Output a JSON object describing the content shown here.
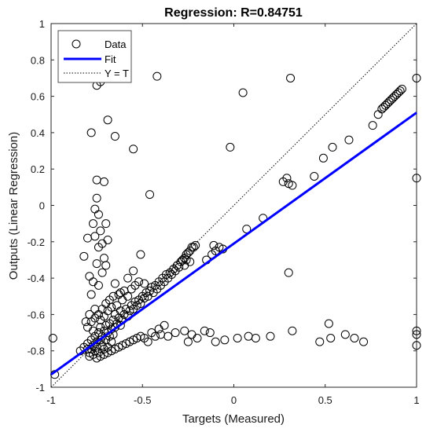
{
  "chart_data": {
    "type": "scatter",
    "title": "Regression: R=0.84751",
    "xlabel": "Targets (Measured)",
    "ylabel": "Outputs (Linear Regression)",
    "xlim": [
      -1,
      1
    ],
    "ylim": [
      -1,
      1
    ],
    "x_ticks": [
      -1,
      -0.5,
      0,
      0.5,
      1
    ],
    "x_tick_labels": [
      "-1",
      "-0.5",
      "0",
      "0.5",
      "1"
    ],
    "y_ticks": [
      -1,
      -0.8,
      -0.6,
      -0.4,
      -0.2,
      0,
      0.2,
      0.4,
      0.6,
      0.8,
      1
    ],
    "y_tick_labels": [
      "-1",
      "-0.8",
      "-0.6",
      "-0.4",
      "-0.2",
      "0",
      "0.2",
      "0.4",
      "0.6",
      "0.8",
      "1"
    ],
    "grid": false,
    "legend_position": "top-left",
    "legend": [
      {
        "label": "Data",
        "style": "circle"
      },
      {
        "label": "Fit",
        "style": "line"
      },
      {
        "label": "Y = T",
        "style": "dotted"
      }
    ],
    "fit": {
      "x": [
        -1,
        1
      ],
      "y": [
        -0.93,
        0.51
      ],
      "color": "#0000ff"
    },
    "identity": {
      "x": [
        -1,
        1
      ],
      "y": [
        -1,
        1
      ],
      "color": "#000000"
    },
    "series": [
      {
        "name": "Data",
        "points": [
          [
            -0.98,
            -0.93
          ],
          [
            -0.99,
            -0.73
          ],
          [
            -0.84,
            -0.8
          ],
          [
            -0.82,
            -0.78
          ],
          [
            -0.8,
            -0.79
          ],
          [
            -0.8,
            -0.76
          ],
          [
            -0.79,
            -0.81
          ],
          [
            -0.78,
            -0.74
          ],
          [
            -0.78,
            -0.79
          ],
          [
            -0.77,
            -0.77
          ],
          [
            -0.76,
            -0.8
          ],
          [
            -0.76,
            -0.72
          ],
          [
            -0.75,
            -0.75
          ],
          [
            -0.75,
            -0.78
          ],
          [
            -0.74,
            -0.7
          ],
          [
            -0.74,
            -0.81
          ],
          [
            -0.73,
            -0.74
          ],
          [
            -0.73,
            -0.67
          ],
          [
            -0.72,
            -0.77
          ],
          [
            -0.72,
            -0.72
          ],
          [
            -0.71,
            -0.79
          ],
          [
            -0.71,
            -0.69
          ],
          [
            -0.7,
            -0.74
          ],
          [
            -0.7,
            -0.66
          ],
          [
            -0.69,
            -0.78
          ],
          [
            -0.69,
            -0.7
          ],
          [
            -0.68,
            -0.72
          ],
          [
            -0.68,
            -0.65
          ],
          [
            -0.67,
            -0.75
          ],
          [
            -0.67,
            -0.68
          ],
          [
            -0.66,
            -0.63
          ],
          [
            -0.66,
            -0.71
          ],
          [
            -0.65,
            -0.67
          ],
          [
            -0.65,
            -0.6
          ],
          [
            -0.64,
            -0.65
          ],
          [
            -0.63,
            -0.62
          ],
          [
            -0.62,
            -0.66
          ],
          [
            -0.62,
            -0.58
          ],
          [
            -0.61,
            -0.63
          ],
          [
            -0.6,
            -0.6
          ],
          [
            -0.59,
            -0.57
          ],
          [
            -0.58,
            -0.61
          ],
          [
            -0.57,
            -0.58
          ],
          [
            -0.56,
            -0.55
          ],
          [
            -0.55,
            -0.57
          ],
          [
            -0.54,
            -0.53
          ],
          [
            -0.53,
            -0.55
          ],
          [
            -0.52,
            -0.52
          ],
          [
            -0.51,
            -0.54
          ],
          [
            -0.5,
            -0.5
          ],
          [
            -0.49,
            -0.51
          ],
          [
            -0.48,
            -0.48
          ],
          [
            -0.47,
            -0.5
          ],
          [
            -0.46,
            -0.47
          ],
          [
            -0.45,
            -0.45
          ],
          [
            -0.44,
            -0.48
          ],
          [
            -0.43,
            -0.44
          ],
          [
            -0.42,
            -0.46
          ],
          [
            -0.41,
            -0.42
          ],
          [
            -0.4,
            -0.44
          ],
          [
            -0.39,
            -0.4
          ],
          [
            -0.38,
            -0.42
          ],
          [
            -0.37,
            -0.38
          ],
          [
            -0.36,
            -0.4
          ],
          [
            -0.35,
            -0.37
          ],
          [
            -0.34,
            -0.38
          ],
          [
            -0.33,
            -0.35
          ],
          [
            -0.32,
            -0.36
          ],
          [
            -0.31,
            -0.33
          ],
          [
            -0.3,
            -0.34
          ],
          [
            -0.29,
            -0.31
          ],
          [
            -0.28,
            -0.3
          ],
          [
            -0.27,
            -0.29
          ],
          [
            -0.26,
            -0.27
          ],
          [
            -0.25,
            -0.26
          ],
          [
            -0.24,
            -0.25
          ],
          [
            -0.23,
            -0.23
          ],
          [
            -0.22,
            -0.23
          ],
          [
            -0.21,
            -0.22
          ],
          [
            -0.8,
            -0.67
          ],
          [
            -0.78,
            -0.64
          ],
          [
            -0.77,
            -0.69
          ],
          [
            -0.76,
            -0.62
          ],
          [
            -0.74,
            -0.6
          ],
          [
            -0.73,
            -0.63
          ],
          [
            -0.72,
            -0.57
          ],
          [
            -0.71,
            -0.61
          ],
          [
            -0.7,
            -0.54
          ],
          [
            -0.69,
            -0.58
          ],
          [
            -0.68,
            -0.52
          ],
          [
            -0.67,
            -0.56
          ],
          [
            -0.66,
            -0.5
          ],
          [
            -0.64,
            -0.55
          ],
          [
            -0.63,
            -0.49
          ],
          [
            -0.61,
            -0.52
          ],
          [
            -0.6,
            -0.47
          ],
          [
            -0.58,
            -0.5
          ],
          [
            -0.56,
            -0.46
          ],
          [
            -0.54,
            -0.44
          ],
          [
            -0.79,
            -0.83
          ],
          [
            -0.77,
            -0.82
          ],
          [
            -0.75,
            -0.84
          ],
          [
            -0.73,
            -0.83
          ],
          [
            -0.71,
            -0.82
          ],
          [
            -0.69,
            -0.81
          ],
          [
            -0.67,
            -0.8
          ],
          [
            -0.65,
            -0.79
          ],
          [
            -0.63,
            -0.78
          ],
          [
            -0.61,
            -0.77
          ],
          [
            -0.59,
            -0.76
          ],
          [
            -0.57,
            -0.75
          ],
          [
            -0.55,
            -0.74
          ],
          [
            -0.53,
            -0.73
          ],
          [
            -0.51,
            -0.72
          ],
          [
            -0.49,
            -0.73
          ],
          [
            -0.47,
            -0.75
          ],
          [
            -0.45,
            -0.7
          ],
          [
            -0.43,
            -0.72
          ],
          [
            -0.41,
            -0.68
          ],
          [
            -0.8,
            -0.18
          ],
          [
            -0.82,
            -0.28
          ],
          [
            -0.79,
            -0.39
          ],
          [
            -0.78,
            -0.49
          ],
          [
            -0.76,
            -0.57
          ],
          [
            -0.79,
            -0.6
          ],
          [
            -0.81,
            -0.64
          ],
          [
            -0.77,
            -0.42
          ],
          [
            -0.75,
            -0.32
          ],
          [
            -0.74,
            -0.23
          ],
          [
            -0.76,
            -0.17
          ],
          [
            -0.77,
            -0.1
          ],
          [
            -0.76,
            -0.02
          ],
          [
            -0.75,
            0.04
          ],
          [
            -0.74,
            -0.05
          ],
          [
            -0.73,
            -0.14
          ],
          [
            -0.72,
            -0.21
          ],
          [
            -0.71,
            -0.29
          ],
          [
            -0.7,
            -0.33
          ],
          [
            -0.72,
            -0.37
          ],
          [
            -0.74,
            -0.44
          ],
          [
            -0.7,
            -0.1
          ],
          [
            -0.69,
            -0.19
          ],
          [
            -0.71,
            0.13
          ],
          [
            -0.75,
            0.14
          ],
          [
            -0.78,
            0.4
          ],
          [
            -0.75,
            0.66
          ],
          [
            -0.73,
            0.68
          ],
          [
            -0.69,
            0.47
          ],
          [
            -0.65,
            0.38
          ],
          [
            -0.55,
            0.31
          ],
          [
            -0.46,
            0.06
          ],
          [
            -0.51,
            -0.27
          ],
          [
            -0.65,
            -0.43
          ],
          [
            -0.62,
            -0.48
          ],
          [
            -0.58,
            -0.4
          ],
          [
            -0.52,
            -0.42
          ],
          [
            -0.49,
            -0.43
          ],
          [
            -0.55,
            -0.36
          ],
          [
            -0.42,
            0.71
          ],
          [
            -0.02,
            0.32
          ],
          [
            0.05,
            0.62
          ],
          [
            0.31,
            0.7
          ],
          [
            0.29,
            0.15
          ],
          [
            0.32,
            0.11
          ],
          [
            0.3,
            0.12
          ],
          [
            0.27,
            0.13
          ],
          [
            0.16,
            -0.07
          ],
          [
            0.07,
            -0.13
          ],
          [
            0.3,
            -0.37
          ],
          [
            0.44,
            0.16
          ],
          [
            0.49,
            0.26
          ],
          [
            0.54,
            0.32
          ],
          [
            0.63,
            0.36
          ],
          [
            0.76,
            0.44
          ],
          [
            0.79,
            0.5
          ],
          [
            0.82,
            0.54
          ],
          [
            0.83,
            0.55
          ],
          [
            0.84,
            0.56
          ],
          [
            0.85,
            0.57
          ],
          [
            0.86,
            0.58
          ],
          [
            0.87,
            0.59
          ],
          [
            0.88,
            0.6
          ],
          [
            0.89,
            0.61
          ],
          [
            0.9,
            0.62
          ],
          [
            0.91,
            0.63
          ],
          [
            0.92,
            0.64
          ],
          [
            0.81,
            0.53
          ],
          [
            -0.15,
            -0.3
          ],
          [
            -0.12,
            -0.27
          ],
          [
            -0.1,
            -0.25
          ],
          [
            -0.08,
            -0.23
          ],
          [
            -0.06,
            -0.24
          ],
          [
            -0.11,
            -0.22
          ],
          [
            -0.26,
            -0.3
          ],
          [
            -0.24,
            -0.31
          ],
          [
            -0.27,
            -0.33
          ],
          [
            -0.32,
            -0.7
          ],
          [
            -0.27,
            -0.69
          ],
          [
            -0.23,
            -0.71
          ],
          [
            -0.2,
            -0.73
          ],
          [
            -0.25,
            -0.75
          ],
          [
            -0.16,
            -0.69
          ],
          [
            -0.13,
            -0.7
          ],
          [
            -0.1,
            -0.75
          ],
          [
            -0.05,
            -0.74
          ],
          [
            0.02,
            -0.73
          ],
          [
            0.08,
            -0.72
          ],
          [
            0.12,
            -0.73
          ],
          [
            0.2,
            -0.72
          ],
          [
            0.32,
            -0.69
          ],
          [
            0.47,
            -0.75
          ],
          [
            0.53,
            -0.73
          ],
          [
            0.61,
            -0.71
          ],
          [
            0.66,
            -0.73
          ],
          [
            0.71,
            -0.75
          ],
          [
            0.52,
            -0.65
          ],
          [
            1.0,
            -0.69
          ],
          [
            1.0,
            -0.71
          ],
          [
            1.0,
            -0.77
          ],
          [
            -0.36,
            -0.72
          ],
          [
            -0.4,
            -0.71
          ],
          [
            -0.38,
            -0.66
          ],
          [
            1.0,
            0.7
          ],
          [
            1.0,
            0.15
          ]
        ]
      }
    ]
  }
}
